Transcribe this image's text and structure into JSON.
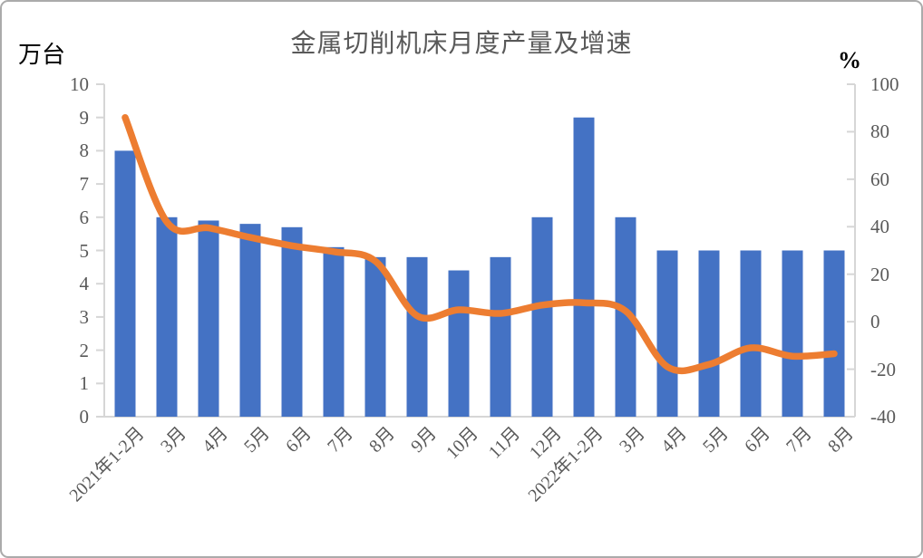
{
  "window": {
    "background_color": "#FFFFFF",
    "border_color": "#ABABAB"
  },
  "chart_data": {
    "type": "bar+line combo",
    "title": "金属切削机床月度产量及增速",
    "grid": "off",
    "legend": "none",
    "left_axis": {
      "unit_label": "万台",
      "min": 0,
      "max": 10,
      "tick_step": 1,
      "ticks": [
        "10",
        "9",
        "8",
        "7",
        "6",
        "5",
        "4",
        "3",
        "2",
        "1",
        "0"
      ]
    },
    "right_axis": {
      "unit_label": "%",
      "min": -40,
      "max": 100,
      "tick_step": 20,
      "ticks": [
        "100",
        "80",
        "60",
        "40",
        "20",
        "0",
        "-20",
        "-40"
      ]
    },
    "categories": [
      "2021年1-2月",
      "3月",
      "4月",
      "5月",
      "6月",
      "7月",
      "8月",
      "9月",
      "10月",
      "11月",
      "12月",
      "2022年1-2月",
      "3月",
      "4月",
      "5月",
      "6月",
      "7月",
      "8月"
    ],
    "bar_series": {
      "axis": "left",
      "color": "#4472C4",
      "values": [
        8.0,
        6.0,
        5.9,
        5.8,
        5.7,
        5.1,
        4.8,
        4.8,
        4.4,
        4.8,
        6.0,
        9.0,
        6.0,
        5.0,
        5.0,
        5.0,
        5.0,
        5.0
      ]
    },
    "line_series": {
      "axis": "right",
      "color": "#ED7D31",
      "values": [
        86,
        42,
        39.5,
        35.5,
        32,
        29.5,
        25.5,
        2.5,
        5,
        3.5,
        7,
        8,
        4.5,
        -19,
        -18,
        -11,
        -14.5,
        -13.5
      ]
    },
    "axis_line_color": "#D6D6D6",
    "label_color": "#595959"
  }
}
